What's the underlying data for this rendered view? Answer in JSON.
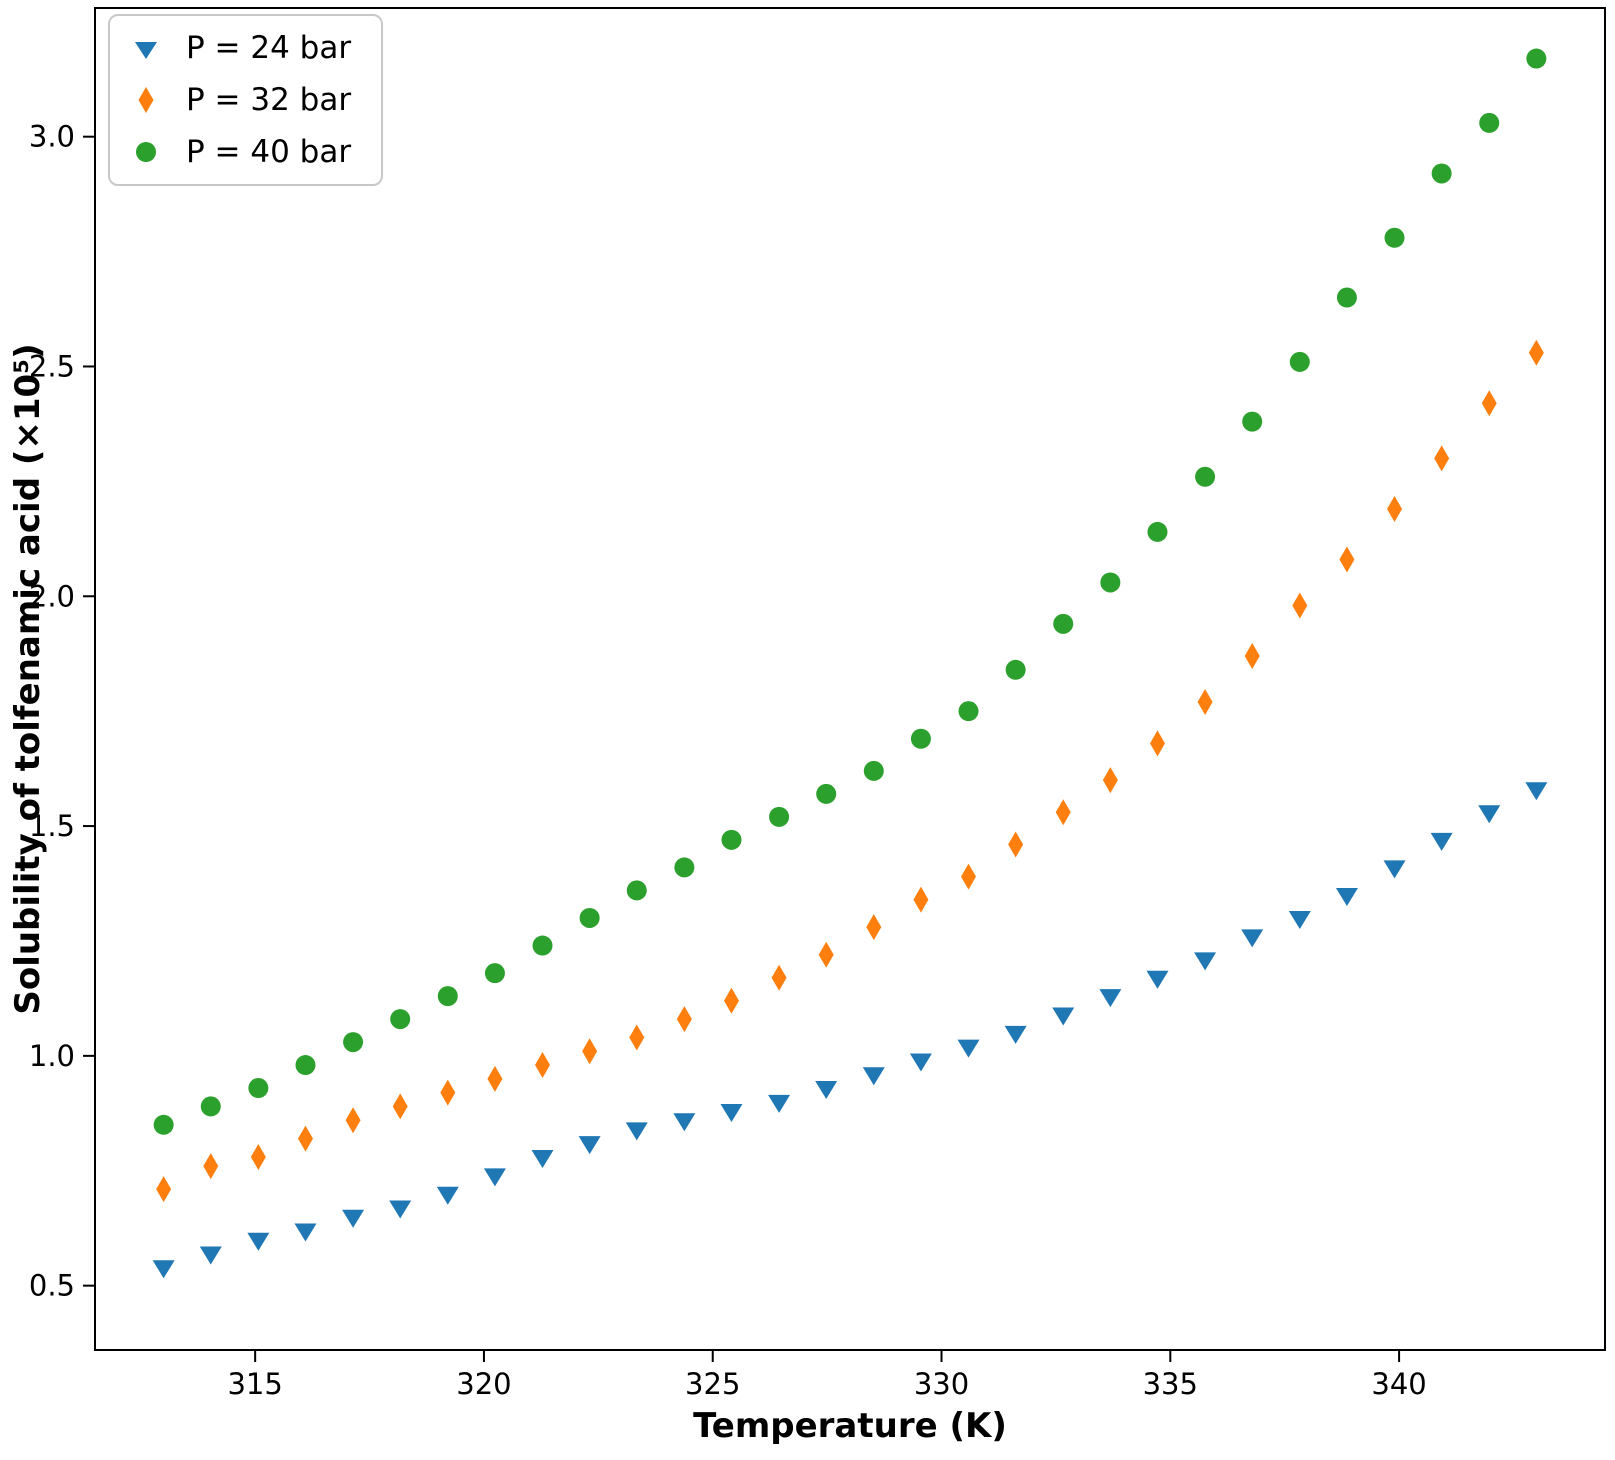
{
  "chart_data": {
    "type": "scatter",
    "title": "",
    "xlabel": "Temperature (K)",
    "ylabel": "Solubility of tolfenamic acid (×10⁵)",
    "xlim": [
      311.5,
      344.5
    ],
    "ylim": [
      0.36,
      3.28
    ],
    "xticks": [
      315,
      320,
      325,
      330,
      335,
      340
    ],
    "yticks": [
      0.5,
      1.0,
      1.5,
      2.0,
      2.5,
      3.0
    ],
    "grid": false,
    "legend_position": "upper-left",
    "axis_color": "#000000",
    "x": [
      313.0,
      314.03,
      315.07,
      316.1,
      317.14,
      318.17,
      319.21,
      320.24,
      321.28,
      322.31,
      323.34,
      324.38,
      325.41,
      326.45,
      327.48,
      328.52,
      329.55,
      330.59,
      331.62,
      332.66,
      333.69,
      334.72,
      335.76,
      336.79,
      337.83,
      338.86,
      339.9,
      340.93,
      341.97,
      343.0
    ],
    "series": [
      {
        "name": "P = 24 bar",
        "marker": "triangle-down",
        "color": "#1f77b4",
        "values": [
          0.54,
          0.57,
          0.6,
          0.62,
          0.65,
          0.67,
          0.7,
          0.74,
          0.78,
          0.81,
          0.84,
          0.86,
          0.88,
          0.9,
          0.93,
          0.96,
          0.99,
          1.02,
          1.05,
          1.09,
          1.13,
          1.17,
          1.21,
          1.26,
          1.3,
          1.35,
          1.41,
          1.47,
          1.53,
          1.58
        ]
      },
      {
        "name": "P = 32 bar",
        "marker": "thin-diamond",
        "color": "#ff7f0e",
        "values": [
          0.71,
          0.76,
          0.78,
          0.82,
          0.86,
          0.89,
          0.92,
          0.95,
          0.98,
          1.01,
          1.04,
          1.08,
          1.12,
          1.17,
          1.22,
          1.28,
          1.34,
          1.39,
          1.46,
          1.53,
          1.6,
          1.68,
          1.77,
          1.87,
          1.98,
          2.08,
          2.19,
          2.3,
          2.42,
          2.53
        ]
      },
      {
        "name": "P = 40 bar",
        "marker": "circle",
        "color": "#2ca02c",
        "values": [
          0.85,
          0.89,
          0.93,
          0.98,
          1.03,
          1.08,
          1.13,
          1.18,
          1.24,
          1.3,
          1.36,
          1.41,
          1.47,
          1.52,
          1.57,
          1.62,
          1.69,
          1.75,
          1.84,
          1.94,
          2.03,
          2.14,
          2.26,
          2.38,
          2.51,
          2.65,
          2.78,
          2.92,
          3.03,
          3.17
        ]
      }
    ]
  }
}
